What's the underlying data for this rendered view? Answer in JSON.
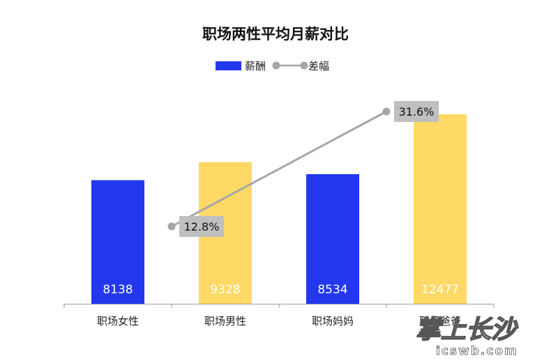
{
  "chart_data": {
    "type": "bar",
    "title": "职场两性平均月薪对比",
    "categories": [
      "职场女性",
      "职场男性",
      "职场妈妈",
      "职场爸爸"
    ],
    "series": [
      {
        "name": "薪酬",
        "type": "bar",
        "values": [
          8138,
          9328,
          8534,
          12477
        ],
        "colors": [
          "#2338EE",
          "#FFD966",
          "#2338EE",
          "#FFD966"
        ]
      },
      {
        "name": "差幅",
        "type": "line",
        "points": [
          {
            "between": [
              "职场女性",
              "职场男性"
            ],
            "value": 12.8,
            "label": "12.8%"
          },
          {
            "between": [
              "职场妈妈",
              "职场爸爸"
            ],
            "value": 31.6,
            "label": "31.6%"
          }
        ],
        "color": "#A6A6A6"
      }
    ],
    "legend": {
      "position": "top-center",
      "items": [
        "薪酬",
        "差幅"
      ]
    },
    "ylim": [
      0,
      12800
    ],
    "grid": false,
    "xlabel": "",
    "ylabel": ""
  },
  "watermark": {
    "text": "掌上长沙",
    "subtext": "icswb.com"
  },
  "colors": {
    "bar_blue": "#2338EE",
    "bar_yellow": "#FFD966",
    "line_gray": "#A6A6A6",
    "label_box": "#BFBFBF",
    "axis": "#999999"
  }
}
